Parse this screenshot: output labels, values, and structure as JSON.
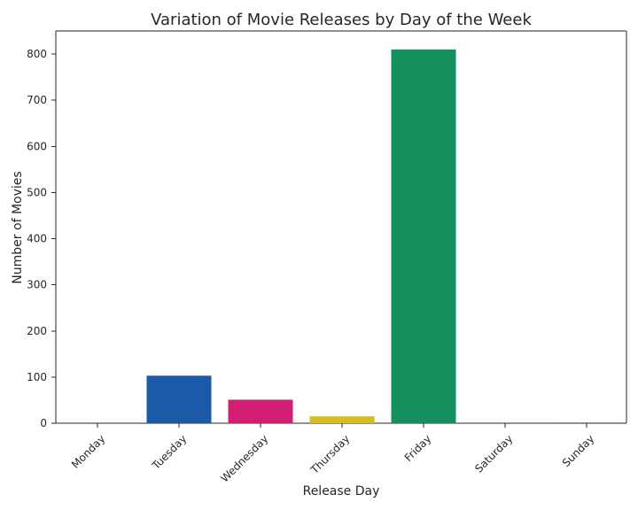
{
  "chart_data": {
    "type": "bar",
    "title": "Variation of Movie Releases by Day of the Week",
    "xlabel": "Release Day",
    "ylabel": "Number of Movies",
    "categories": [
      "Monday",
      "Tuesday",
      "Wednesday",
      "Thursday",
      "Friday",
      "Saturday",
      "Sunday"
    ],
    "values": [
      0,
      103,
      51,
      15,
      810,
      0,
      2
    ],
    "colors": [
      "#1f1f8f",
      "#1a5aa8",
      "#d21f73",
      "#d6bd1f",
      "#159160",
      "#6a2d8f",
      "#d17a12"
    ],
    "ylim": [
      0,
      850
    ],
    "yticks": [
      0,
      100,
      200,
      300,
      400,
      500,
      600,
      700,
      800
    ],
    "grid": false,
    "legend": "none"
  }
}
